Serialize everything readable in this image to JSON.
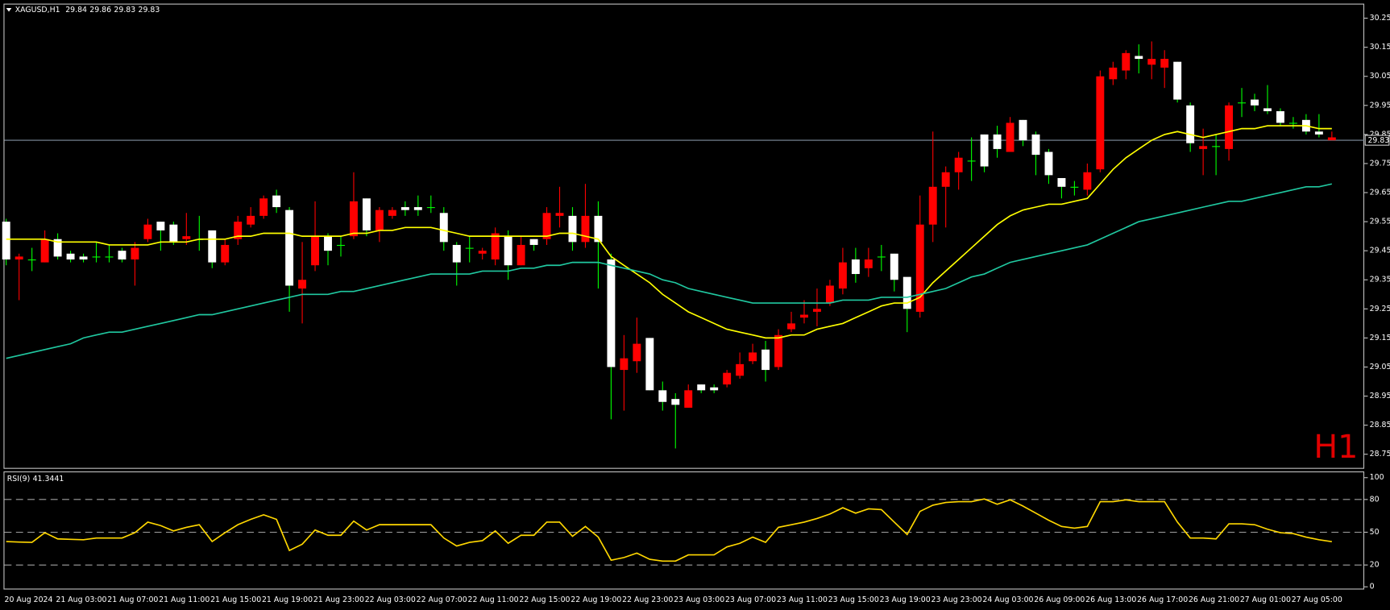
{
  "chart_data": {
    "type": "candlestick",
    "symbol": "XAGUSD,H1",
    "timeframe_label": "H1",
    "categories": [
      "20 Aug 2024",
      null,
      null,
      null,
      "21 Aug 03:00",
      null,
      null,
      null,
      "21 Aug 07:00",
      null,
      null,
      null,
      "21 Aug 11:00",
      null,
      null,
      null,
      "21 Aug 15:00",
      null,
      null,
      null,
      "21 Aug 19:00",
      null,
      null,
      null,
      "21 Aug 23:00",
      null,
      null,
      null,
      "22 Aug 03:00",
      null,
      null,
      null,
      "22 Aug 07:00",
      null,
      null,
      null,
      "22 Aug 11:00",
      null,
      null,
      null,
      "22 Aug 15:00",
      null,
      null,
      null,
      "22 Aug 19:00",
      null,
      null,
      null,
      "22 Aug 23:00",
      null,
      null,
      null,
      "23 Aug 03:00",
      null,
      null,
      null,
      "23 Aug 07:00",
      null,
      null,
      null,
      "23 Aug 11:00",
      null,
      null,
      null,
      "23 Aug 15:00",
      null,
      null,
      null,
      "23 Aug 19:00",
      null,
      null,
      null,
      "23 Aug 23:00",
      null,
      null,
      null,
      "24 Aug 03:00",
      null,
      null,
      null,
      "26 Aug 09:00",
      null,
      null,
      null,
      "26 Aug 13:00",
      null,
      null,
      null,
      "26 Aug 17:00",
      null,
      null,
      null,
      "26 Aug 21:00",
      null,
      null,
      null,
      "27 Aug 01:00",
      null,
      null,
      null,
      "27 Aug 05:00",
      null,
      null,
      null
    ],
    "candles": [
      [
        29.42,
        29.56,
        29.4,
        29.55
      ],
      [
        29.43,
        29.44,
        29.28,
        29.42
      ],
      [
        29.42,
        29.46,
        29.38,
        29.42
      ],
      [
        29.49,
        29.52,
        29.41,
        29.41
      ],
      [
        29.43,
        29.51,
        29.42,
        29.49
      ],
      [
        29.42,
        29.45,
        29.41,
        29.44
      ],
      [
        29.42,
        29.44,
        29.41,
        29.43
      ],
      [
        29.43,
        29.48,
        29.41,
        29.43
      ],
      [
        29.43,
        29.47,
        29.41,
        29.43
      ],
      [
        29.42,
        29.46,
        29.41,
        29.45
      ],
      [
        29.46,
        29.48,
        29.33,
        29.42
      ],
      [
        29.54,
        29.56,
        29.48,
        29.49
      ],
      [
        29.52,
        29.55,
        29.45,
        29.55
      ],
      [
        29.48,
        29.55,
        29.47,
        29.54
      ],
      [
        29.5,
        29.58,
        29.47,
        29.49
      ],
      [
        29.49,
        29.57,
        29.45,
        29.49
      ],
      [
        29.41,
        29.52,
        29.39,
        29.52
      ],
      [
        29.47,
        29.49,
        29.4,
        29.41
      ],
      [
        29.55,
        29.57,
        29.47,
        29.49
      ],
      [
        29.57,
        29.6,
        29.53,
        29.54
      ],
      [
        29.63,
        29.64,
        29.56,
        29.57
      ],
      [
        29.6,
        29.66,
        29.58,
        29.64
      ],
      [
        29.33,
        29.6,
        29.24,
        29.59
      ],
      [
        29.35,
        29.48,
        29.2,
        29.32
      ],
      [
        29.5,
        29.62,
        29.38,
        29.4
      ],
      [
        29.45,
        29.51,
        29.4,
        29.5
      ],
      [
        29.47,
        29.5,
        29.43,
        29.47
      ],
      [
        29.62,
        29.72,
        29.49,
        29.5
      ],
      [
        29.52,
        29.63,
        29.5,
        29.63
      ],
      [
        29.59,
        29.6,
        29.48,
        29.52
      ],
      [
        29.59,
        29.6,
        29.56,
        29.57
      ],
      [
        29.59,
        29.62,
        29.57,
        29.6
      ],
      [
        29.59,
        29.64,
        29.57,
        29.6
      ],
      [
        29.6,
        29.64,
        29.58,
        29.6
      ],
      [
        29.48,
        29.6,
        29.45,
        29.58
      ],
      [
        29.41,
        29.48,
        29.33,
        29.47
      ],
      [
        29.46,
        29.5,
        29.41,
        29.46
      ],
      [
        29.45,
        29.46,
        29.42,
        29.44
      ],
      [
        29.51,
        29.53,
        29.4,
        29.42
      ],
      [
        29.4,
        29.52,
        29.35,
        29.5
      ],
      [
        29.47,
        29.5,
        29.4,
        29.4
      ],
      [
        29.47,
        29.49,
        29.45,
        29.49
      ],
      [
        29.58,
        29.6,
        29.47,
        29.49
      ],
      [
        29.58,
        29.67,
        29.53,
        29.57
      ],
      [
        29.48,
        29.6,
        29.45,
        29.57
      ],
      [
        29.57,
        29.68,
        29.46,
        29.48
      ],
      [
        29.48,
        29.62,
        29.32,
        29.57
      ],
      [
        29.05,
        29.44,
        28.87,
        29.42
      ],
      [
        29.08,
        29.16,
        28.9,
        29.04
      ],
      [
        29.13,
        29.22,
        29.03,
        29.07
      ],
      [
        28.97,
        29.15,
        28.97,
        29.15
      ],
      [
        28.93,
        29.0,
        28.9,
        28.97
      ],
      [
        28.92,
        28.96,
        28.77,
        28.94
      ],
      [
        28.97,
        28.99,
        28.91,
        28.91
      ],
      [
        28.97,
        28.99,
        28.96,
        28.99
      ],
      [
        28.97,
        28.99,
        28.96,
        28.98
      ],
      [
        29.03,
        29.04,
        28.98,
        28.99
      ],
      [
        29.06,
        29.1,
        29.01,
        29.02
      ],
      [
        29.1,
        29.13,
        29.06,
        29.07
      ],
      [
        29.04,
        29.14,
        29.0,
        29.11
      ],
      [
        29.16,
        29.18,
        29.04,
        29.05
      ],
      [
        29.2,
        29.24,
        29.17,
        29.18
      ],
      [
        29.23,
        29.28,
        29.2,
        29.22
      ],
      [
        29.25,
        29.32,
        29.19,
        29.24
      ],
      [
        29.33,
        29.35,
        29.26,
        29.27
      ],
      [
        29.41,
        29.46,
        29.3,
        29.32
      ],
      [
        29.37,
        29.46,
        29.34,
        29.42
      ],
      [
        29.42,
        29.46,
        29.36,
        29.39
      ],
      [
        29.43,
        29.47,
        29.38,
        29.43
      ],
      [
        29.35,
        29.44,
        29.31,
        29.44
      ],
      [
        29.25,
        29.35,
        29.17,
        29.36
      ],
      [
        29.54,
        29.64,
        29.22,
        29.24
      ],
      [
        29.67,
        29.86,
        29.48,
        29.54
      ],
      [
        29.72,
        29.74,
        29.53,
        29.67
      ],
      [
        29.77,
        29.79,
        29.66,
        29.72
      ],
      [
        29.76,
        29.84,
        29.69,
        29.76
      ],
      [
        29.74,
        29.85,
        29.72,
        29.85
      ],
      [
        29.8,
        29.88,
        29.77,
        29.85
      ],
      [
        29.89,
        29.91,
        29.79,
        29.79
      ],
      [
        29.83,
        29.9,
        29.81,
        29.9
      ],
      [
        29.78,
        29.86,
        29.71,
        29.85
      ],
      [
        29.71,
        29.8,
        29.68,
        29.79
      ],
      [
        29.67,
        29.7,
        29.63,
        29.7
      ],
      [
        29.67,
        29.69,
        29.64,
        29.67
      ],
      [
        29.72,
        29.75,
        29.64,
        29.66
      ],
      [
        30.05,
        30.07,
        29.72,
        29.73
      ],
      [
        30.08,
        30.1,
        30.02,
        30.04
      ],
      [
        30.13,
        30.14,
        30.04,
        30.07
      ],
      [
        30.11,
        30.16,
        30.06,
        30.12
      ],
      [
        30.11,
        30.17,
        30.04,
        30.09
      ],
      [
        30.11,
        30.14,
        30.01,
        30.08
      ],
      [
        29.97,
        30.1,
        29.96,
        30.1
      ],
      [
        29.82,
        29.96,
        29.79,
        29.95
      ],
      [
        29.81,
        29.87,
        29.71,
        29.8
      ],
      [
        29.81,
        29.85,
        29.71,
        29.81
      ],
      [
        29.95,
        29.96,
        29.76,
        29.8
      ],
      [
        29.96,
        30.01,
        29.91,
        29.96
      ],
      [
        29.95,
        29.99,
        29.93,
        29.97
      ],
      [
        29.93,
        30.02,
        29.92,
        29.94
      ],
      [
        29.89,
        29.94,
        29.88,
        29.93
      ],
      [
        29.89,
        29.91,
        29.87,
        29.89
      ],
      [
        29.86,
        29.92,
        29.85,
        29.9
      ],
      [
        29.85,
        29.92,
        29.84,
        29.86
      ],
      [
        29.84,
        29.86,
        29.83,
        29.83
      ]
    ],
    "up_color": "#ffffff",
    "down_color": "#ff0000",
    "doji_color": "#00ff00",
    "wick_up_color": "#00ff00",
    "overlays": [
      {
        "color": "#ffff00",
        "values": [
          29.49,
          29.49,
          29.49,
          29.49,
          29.48,
          29.48,
          29.48,
          29.48,
          29.47,
          29.47,
          29.47,
          29.47,
          29.48,
          29.48,
          29.48,
          29.49,
          29.49,
          29.49,
          29.5,
          29.5,
          29.51,
          29.51,
          29.51,
          29.5,
          29.5,
          29.5,
          29.5,
          29.51,
          29.51,
          29.52,
          29.52,
          29.53,
          29.53,
          29.53,
          29.52,
          29.51,
          29.5,
          29.5,
          29.5,
          29.5,
          29.5,
          29.5,
          29.5,
          29.51,
          29.51,
          29.5,
          29.49,
          29.43,
          29.4,
          29.37,
          29.34,
          29.3,
          29.27,
          29.24,
          29.22,
          29.2,
          29.18,
          29.17,
          29.16,
          29.15,
          29.15,
          29.16,
          29.16,
          29.18,
          29.19,
          29.2,
          29.22,
          29.24,
          29.26,
          29.27,
          29.27,
          29.29,
          29.34,
          29.38,
          29.42,
          29.46,
          29.5,
          29.54,
          29.57,
          29.59,
          29.6,
          29.61,
          29.61,
          29.62,
          29.63,
          29.68,
          29.73,
          29.77,
          29.8,
          29.83,
          29.85,
          29.86,
          29.85,
          29.84,
          29.85,
          29.86,
          29.87,
          29.87,
          29.88,
          29.88,
          29.88,
          29.88,
          29.87,
          29.87
        ]
      },
      {
        "color": "#20c8a0",
        "values": [
          29.08,
          29.09,
          29.1,
          29.11,
          29.12,
          29.13,
          29.15,
          29.16,
          29.17,
          29.17,
          29.18,
          29.19,
          29.2,
          29.21,
          29.22,
          29.23,
          29.23,
          29.24,
          29.25,
          29.26,
          29.27,
          29.28,
          29.29,
          29.3,
          29.3,
          29.3,
          29.31,
          29.31,
          29.32,
          29.33,
          29.34,
          29.35,
          29.36,
          29.37,
          29.37,
          29.37,
          29.37,
          29.38,
          29.38,
          29.38,
          29.39,
          29.39,
          29.4,
          29.4,
          29.41,
          29.41,
          29.41,
          29.4,
          29.39,
          29.38,
          29.37,
          29.35,
          29.34,
          29.32,
          29.31,
          29.3,
          29.29,
          29.28,
          29.27,
          29.27,
          29.27,
          29.27,
          29.27,
          29.27,
          29.27,
          29.28,
          29.28,
          29.28,
          29.29,
          29.29,
          29.29,
          29.3,
          29.31,
          29.32,
          29.34,
          29.36,
          29.37,
          29.39,
          29.41,
          29.42,
          29.43,
          29.44,
          29.45,
          29.46,
          29.47,
          29.49,
          29.51,
          29.53,
          29.55,
          29.56,
          29.57,
          29.58,
          29.59,
          29.6,
          29.61,
          29.62,
          29.62,
          29.63,
          29.64,
          29.65,
          29.66,
          29.67,
          29.67,
          29.68
        ]
      }
    ],
    "price_line_color": "#7f8fa0",
    "ylim": [
      28.7,
      30.3
    ],
    "yticks": [
      28.75,
      28.85,
      28.95,
      29.05,
      29.15,
      29.25,
      29.35,
      29.45,
      29.55,
      29.65,
      29.75,
      29.85,
      29.95,
      30.05,
      30.15,
      30.25
    ],
    "indicator": {
      "label": "RSI(9)",
      "color": "#ffd700",
      "values": [
        41.5,
        41.0,
        40.7,
        49.6,
        43.9,
        43.5,
        43.1,
        44.7,
        44.7,
        44.7,
        49.6,
        59.3,
        56.1,
        51.2,
        54.5,
        56.9,
        41.5,
        49.6,
        56.9,
        61.8,
        65.9,
        61.8,
        33.3,
        39.0,
        52.0,
        47.2,
        47.2,
        60.2,
        52.0,
        56.9,
        56.9,
        56.9,
        56.9,
        56.9,
        44.7,
        37.4,
        40.7,
        42.3,
        51.2,
        39.8,
        47.2,
        47.2,
        59.3,
        59.3,
        46.3,
        55.3,
        45.5,
        24.4,
        26.8,
        30.9,
        25.2,
        23.6,
        23.6,
        29.3,
        29.3,
        29.3,
        36.6,
        39.8,
        45.5,
        40.7,
        54.5,
        56.9,
        59.3,
        62.6,
        66.7,
        72.4,
        67.5,
        71.5,
        70.7,
        59.3,
        48.0,
        69.1,
        74.8,
        77.2,
        78.0,
        78.0,
        80.5,
        75.6,
        79.7,
        74.0,
        67.5,
        61.0,
        55.3,
        53.7,
        55.3,
        78.0,
        78.0,
        79.7,
        78.0,
        78.0,
        78.0,
        59.3,
        44.7,
        44.7,
        43.9,
        57.7,
        57.7,
        56.9,
        52.8,
        49.6,
        48.8,
        45.5,
        43.1,
        41.3441
      ],
      "ylim": [
        0,
        100
      ],
      "yticks": [
        0,
        20,
        50,
        80,
        100
      ]
    }
  }
}
